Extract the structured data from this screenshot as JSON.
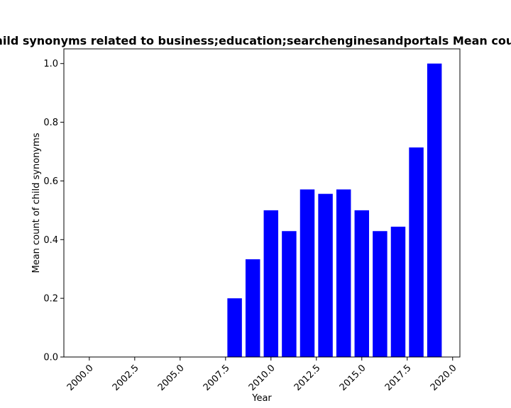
{
  "chart_data": {
    "type": "bar",
    "title": "Mean count of child synonyms related to business;education;searchenginesandportals Mean count of child synonyms",
    "xlabel": "Year",
    "ylabel": "Mean count of child synonyms",
    "x": [
      2008,
      2009,
      2010,
      2011,
      2012,
      2013,
      2014,
      2015,
      2016,
      2017,
      2018,
      2019
    ],
    "values": [
      0.2,
      0.333,
      0.5,
      0.429,
      0.571,
      0.556,
      0.571,
      0.5,
      0.429,
      0.444,
      0.714,
      1.0
    ],
    "xlim": [
      1998.6,
      2020.4
    ],
    "ylim": [
      0,
      1.05
    ],
    "xticks": [
      2000.0,
      2002.5,
      2005.0,
      2007.5,
      2010.0,
      2012.5,
      2015.0,
      2017.5,
      2020.0
    ],
    "xtick_labels": [
      "2000.0",
      "2002.5",
      "2005.0",
      "2007.5",
      "2010.0",
      "2012.5",
      "2015.0",
      "2017.5",
      "2020.0"
    ],
    "yticks": [
      0.0,
      0.2,
      0.4,
      0.6,
      0.8,
      1.0
    ],
    "ytick_labels": [
      "0.0",
      "0.2",
      "0.4",
      "0.6",
      "0.8",
      "1.0"
    ],
    "bar_color": "#0000ff",
    "grid": false,
    "legend": "none"
  }
}
